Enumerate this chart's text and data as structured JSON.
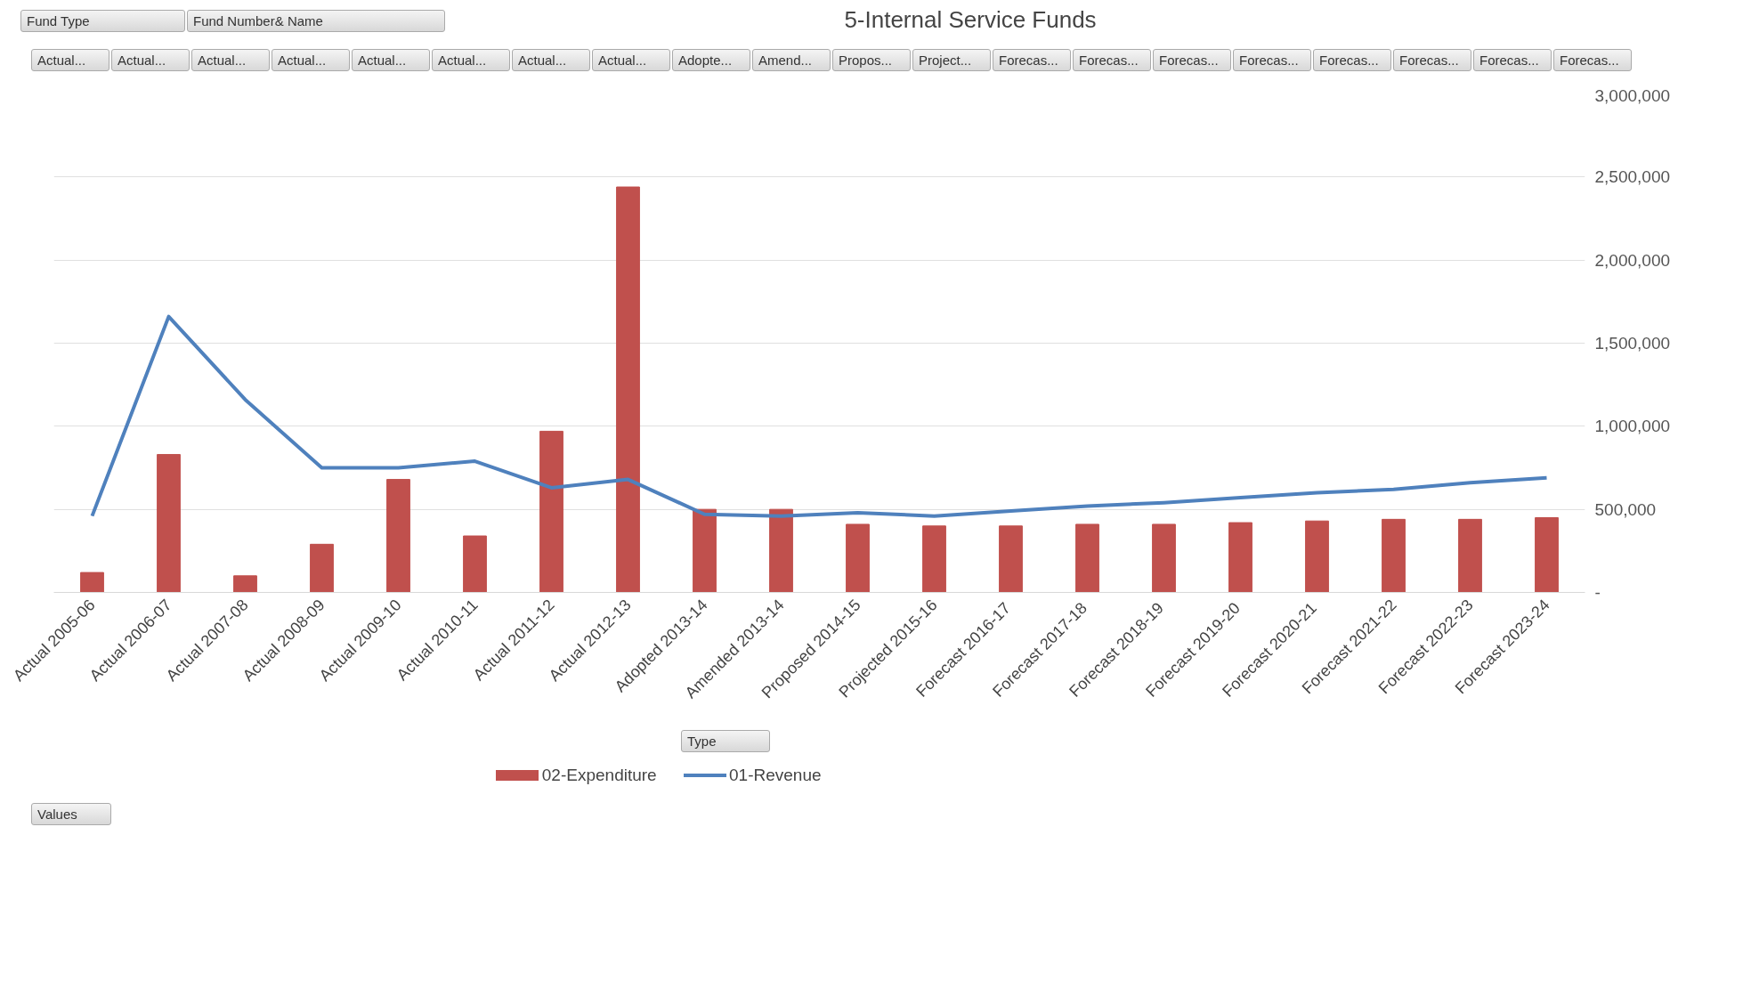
{
  "chart_data": {
    "type": "bar",
    "title": "5-Internal Service Funds",
    "categories": [
      "Actual 2005-06",
      "Actual 2006-07",
      "Actual 2007-08",
      "Actual 2008-09",
      "Actual 2009-10",
      "Actual 2010-11",
      "Actual 2011-12",
      "Actual 2012-13",
      "Adopted 2013-14",
      "Amended 2013-14",
      "Proposed 2014-15",
      "Projected 2015-16",
      "Forecast  2016-17",
      "Forecast  2017-18",
      "Forecast  2018-19",
      "Forecast  2019-20",
      "Forecast  2020-21",
      "Forecast 2021-22",
      "Forecast 2022-23",
      "Forecast 2023-24"
    ],
    "series": [
      {
        "name": "02-Expenditure",
        "color": "#c0504d",
        "values": [
          120000,
          830000,
          100000,
          290000,
          680000,
          340000,
          970000,
          2440000,
          500000,
          500000,
          410000,
          400000,
          400000,
          410000,
          410000,
          420000,
          430000,
          440000,
          440000,
          450000
        ]
      },
      {
        "name": "01-Revenue",
        "type": "line",
        "color": "#4f81bd",
        "values": [
          460000,
          1660000,
          1160000,
          750000,
          750000,
          790000,
          630000,
          680000,
          470000,
          460000,
          480000,
          460000,
          490000,
          520000,
          540000,
          570000,
          600000,
          620000,
          660000,
          690000
        ]
      }
    ],
    "ylim": [
      0,
      3000000
    ],
    "yticks": [
      {
        "value": 0,
        "label": "-"
      },
      {
        "value": 500000,
        "label": "500,000"
      },
      {
        "value": 1000000,
        "label": "1,000,000"
      },
      {
        "value": 1500000,
        "label": "1,500,000"
      },
      {
        "value": 2000000,
        "label": "2,000,000"
      },
      {
        "value": 2500000,
        "label": "2,500,000"
      },
      {
        "value": 3000000,
        "label": "3,000,000"
      }
    ],
    "grid": "y",
    "legend": "bottom",
    "marker": "none",
    "line_style": "solid",
    "annotations": [
      "Fund Type",
      "Fund Number& Name",
      "Actual...",
      "Actual...",
      "Actual...",
      "Actual...",
      "Actual...",
      "Actual...",
      "Actual...",
      "Actual...",
      "Adopte...",
      "Amend...",
      "Propos...",
      "Project...",
      "Forecas...",
      "Forecas...",
      "Forecas...",
      "Forecas...",
      "Forecas...",
      "Forecas...",
      "Forecas...",
      "Forecas...",
      "Type",
      "Values"
    ]
  }
}
